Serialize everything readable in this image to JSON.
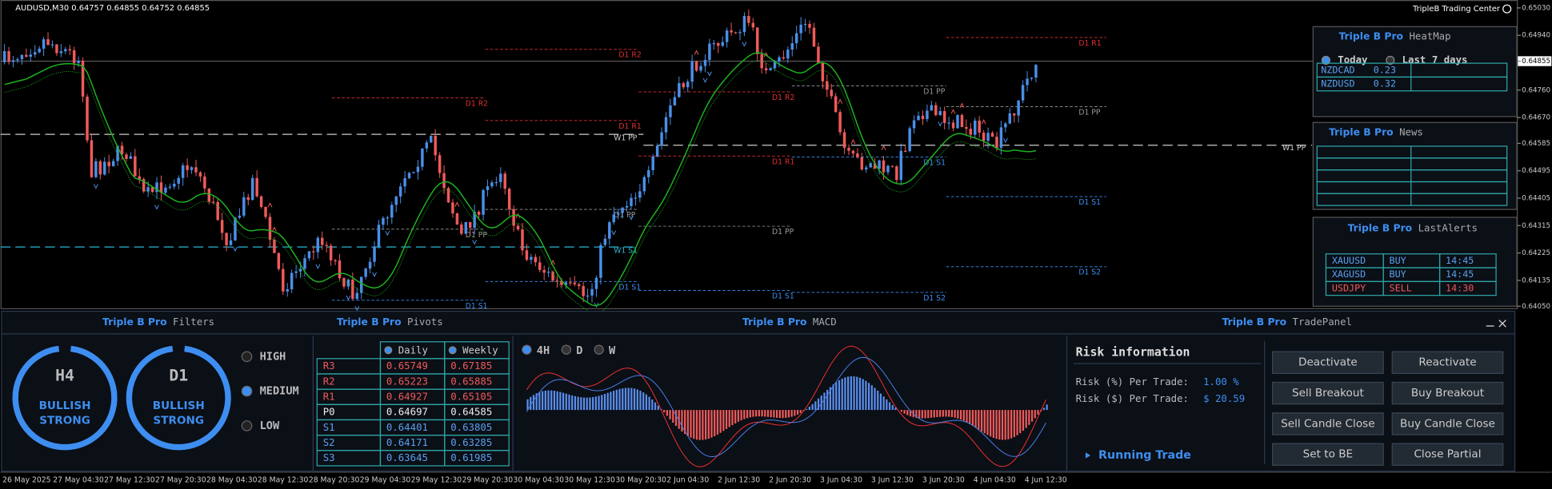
{
  "header": {
    "symbol_info": "AUDUSD,M30  0.64757 0.64855 0.64752 0.64855",
    "brand": "TripleB Trading Center"
  },
  "price_axis": [
    "0.65030",
    "0.64940",
    "0.64855",
    "0.64760",
    "0.64670",
    "0.64585",
    "0.64495",
    "0.64405",
    "0.64315",
    "0.64225",
    "0.64135",
    "0.64050"
  ],
  "time_axis": [
    "26 May 2025",
    "27 May 04:30",
    "27 May 12:30",
    "27 May 20:30",
    "28 May 04:30",
    "28 May 12:30",
    "28 May 20:30",
    "29 May 04:30",
    "29 May 12:30",
    "29 May 20:30",
    "30 May 04:30",
    "30 May 12:30",
    "30 May 20:30",
    "2 Jun 04:30",
    "2 Jun 12:30",
    "2 Jun 20:30",
    "3 Jun 04:30",
    "3 Jun 12:30",
    "3 Jun 20:30",
    "4 Jun 04:30",
    "4 Jun 12:30"
  ],
  "chart_labels": [
    "D1 R2",
    "D1 R2",
    "D1 R1",
    "D1 R1",
    "D1 R1",
    "D1 R2",
    "W1 PP",
    "W1 PP",
    "D1 PP",
    "D1 PP",
    "D1 PP",
    "D1 PP",
    "D1 PP",
    "D1 S1",
    "D1 S1",
    "W1 S1",
    "D1 S1",
    "D1 S1",
    "D1 S1",
    "D1 S2",
    "D1 S2"
  ],
  "heatmap": {
    "brand": "Triple B Pro",
    "title": "HeatMap",
    "tabs": [
      "Today",
      "Last 7 days"
    ],
    "rows": [
      [
        "NZDCAD",
        "0.23"
      ],
      [
        "NZDUSD",
        "0.32"
      ]
    ]
  },
  "news": {
    "brand": "Triple B Pro",
    "title": "News"
  },
  "alerts": {
    "brand": "Triple B Pro",
    "title": "LastAlerts",
    "rows": [
      [
        "XAUUSD",
        "BUY",
        "14:45"
      ],
      [
        "XAGUSD",
        "BUY",
        "14:45"
      ],
      [
        "USDJPY",
        "SELL",
        "14:30"
      ]
    ]
  },
  "filters": {
    "brand": "Triple B Pro",
    "title": "Filters",
    "gauges": [
      {
        "tf": "H4",
        "line1": "BULLISH",
        "line2": "STRONG"
      },
      {
        "tf": "D1",
        "line1": "BULLISH",
        "line2": "STRONG"
      }
    ],
    "levels": [
      "HIGH",
      "MEDIUM",
      "LOW"
    ]
  },
  "pivots": {
    "brand": "Triple B Pro",
    "title": "Pivots",
    "columns": [
      "Daily",
      "Weekly"
    ],
    "rows": [
      [
        "R3",
        "0.65749",
        "0.67185"
      ],
      [
        "R2",
        "0.65223",
        "0.65885"
      ],
      [
        "R1",
        "0.64927",
        "0.65105"
      ],
      [
        "P0",
        "0.64697",
        "0.64585"
      ],
      [
        "S1",
        "0.64401",
        "0.63805"
      ],
      [
        "S2",
        "0.64171",
        "0.63285"
      ],
      [
        "S3",
        "0.63645",
        "0.61985"
      ]
    ]
  },
  "macd": {
    "brand": "Triple B Pro",
    "title": "MACD",
    "timeframes": [
      "4H",
      "D",
      "W"
    ]
  },
  "trade_panel": {
    "brand": "Triple B Pro",
    "title": "TradePanel",
    "risk_title": "Risk information",
    "risk_pct_label": "Risk (%) Per Trade:",
    "risk_pct": "1.00 %",
    "risk_usd_label": "Risk ($) Per Trade:",
    "risk_usd": "$ 20.59",
    "running": "Running Trade",
    "buttons": [
      "Deactivate",
      "Reactivate",
      "Sell Breakout",
      "Buy Breakout",
      "Sell Candle Close",
      "Buy Candle Close",
      "Set to BE",
      "Close Partial"
    ]
  }
}
